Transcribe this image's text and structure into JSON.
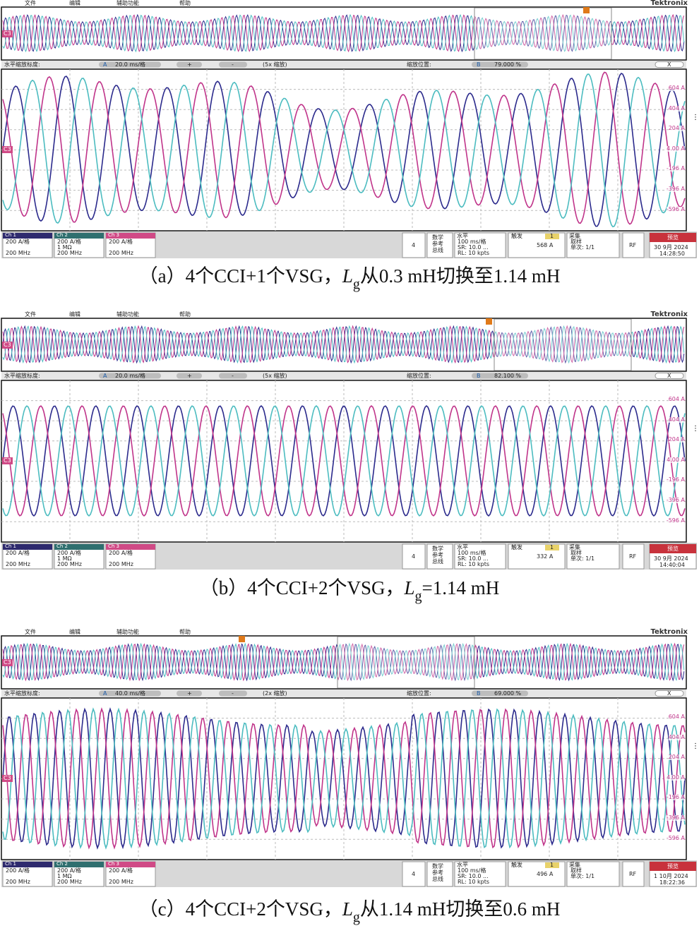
{
  "panels": [
    {
      "menu": [
        "文件",
        "编辑",
        "辅助功能",
        "帮助"
      ],
      "brand": "Tektronix",
      "overview_marker": "C3",
      "main_marker": "C3",
      "zoom": {
        "label": "水平缩放标度:",
        "a": "A",
        "scale": "20.0 ms/格",
        "plus": "+",
        "minus": "-",
        "factor": "(5x 缩放)",
        "pos_label": "缩放位置:",
        "b": "B",
        "pos": "79.000 %",
        "close": "X"
      },
      "y_labels": [
        "604 A",
        "404 A",
        "204 A",
        "4.00 A",
        "-196 A",
        "-396 A",
        "-596 A"
      ],
      "channels": [
        {
          "name": "Ch 1",
          "lines": [
            "200 A/格",
            "200 MHz"
          ]
        },
        {
          "name": "Ch 2",
          "lines": [
            "200 A/格",
            "1 MΩ",
            "200 MHz"
          ]
        },
        {
          "name": "Ch 3",
          "lines": [
            "200 A/格",
            "200 MHz"
          ]
        }
      ],
      "ch4": "4",
      "math": [
        "数学",
        "参考",
        "总线"
      ],
      "horizontal": {
        "title": "水平",
        "lines": [
          "100 ms/格",
          "SR: 10.0 ...",
          "RL: 10 kpts"
        ]
      },
      "trigger": {
        "title": "触发",
        "source": "1",
        "level": "568 A"
      },
      "acquire": {
        "title": "采集",
        "lines": [
          "取样",
          "单次: 1/1"
        ]
      },
      "rf": "RF",
      "preview": {
        "title": "预览",
        "date": "30 9月 2024",
        "time": "14:28:50"
      },
      "caption": {
        "prefix": "（a）4个CCI+1个VSG，",
        "var": "L",
        "sub": "g",
        "suffix": "从0.3 mH切换至1.14 mH"
      }
    },
    {
      "menu": [
        "文件",
        "编辑",
        "辅助功能",
        "帮助"
      ],
      "brand": "Tektronix",
      "overview_marker": "C3",
      "main_marker": "C3",
      "zoom": {
        "label": "水平缩放标度:",
        "a": "A",
        "scale": "20.0 ms/格",
        "plus": "+",
        "minus": "-",
        "factor": "(5x 缩放)",
        "pos_label": "缩放位置:",
        "b": "B",
        "pos": "82.100 %",
        "close": "X"
      },
      "y_labels": [
        "604 A",
        "404 A",
        "204 A",
        "4.00 A",
        "-196 A",
        "-396 A",
        "-596 A"
      ],
      "channels": [
        {
          "name": "Ch 1",
          "lines": [
            "200 A/格",
            "200 MHz"
          ]
        },
        {
          "name": "Ch 2",
          "lines": [
            "200 A/格",
            "1 MΩ",
            "200 MHz"
          ]
        },
        {
          "name": "Ch 3",
          "lines": [
            "200 A/格",
            "200 MHz"
          ]
        }
      ],
      "ch4": "4",
      "math": [
        "数学",
        "参考",
        "总线"
      ],
      "horizontal": {
        "title": "水平",
        "lines": [
          "100 ms/格",
          "SR: 10.0 ...",
          "RL: 10 kpts"
        ]
      },
      "trigger": {
        "title": "触发",
        "source": "1",
        "level": "332 A"
      },
      "acquire": {
        "title": "采集",
        "lines": [
          "取样",
          "单次: 1/1"
        ]
      },
      "rf": "RF",
      "preview": {
        "title": "预览",
        "date": "30 9月 2024",
        "time": "14:40:04"
      },
      "caption": {
        "prefix": "（b）4个CCI+2个VSG，",
        "var": "L",
        "sub": "g",
        "suffix": "=1.14 mH"
      }
    },
    {
      "menu": [
        "文件",
        "编辑",
        "辅助功能",
        "帮助"
      ],
      "brand": "Tektronix",
      "overview_marker": "C3",
      "main_marker": "C3",
      "zoom": {
        "label": "水平缩放标度:",
        "a": "A",
        "scale": "40.0 ms/格",
        "plus": "+",
        "minus": "-",
        "factor": "(2x 缩放)",
        "pos_label": "缩放位置:",
        "b": "B",
        "pos": "69.000 %",
        "close": "X"
      },
      "y_labels": [
        "604 A",
        "404 A",
        "204 A",
        "4.00 A",
        "-196 A",
        "-396 A",
        "-596 A"
      ],
      "channels": [
        {
          "name": "Ch 1",
          "lines": [
            "200 A/格",
            "200 MHz"
          ]
        },
        {
          "name": "Ch 2",
          "lines": [
            "200 A/格",
            "1 MΩ",
            "200 MHz"
          ]
        },
        {
          "name": "Ch 3",
          "lines": [
            "200 A/格",
            "200 MHz"
          ]
        }
      ],
      "ch4": "4",
      "math": [
        "数学",
        "参考",
        "总线"
      ],
      "horizontal": {
        "title": "水平",
        "lines": [
          "100 ms/格",
          "SR: 10.0 ...",
          "RL: 10 kpts"
        ]
      },
      "trigger": {
        "title": "触发",
        "source": "1",
        "level": "496 A"
      },
      "acquire": {
        "title": "采集",
        "lines": [
          "取样",
          "单次: 1/1"
        ]
      },
      "rf": "RF",
      "preview": {
        "title": "预览",
        "date": "1 10月 2024",
        "time": "18:22:36"
      },
      "caption": {
        "prefix": "（c）4个CCI+2个VSG，",
        "var": "L",
        "sub": "g",
        "suffix": "从1.14 mH切换至0.6 mH"
      }
    }
  ]
}
